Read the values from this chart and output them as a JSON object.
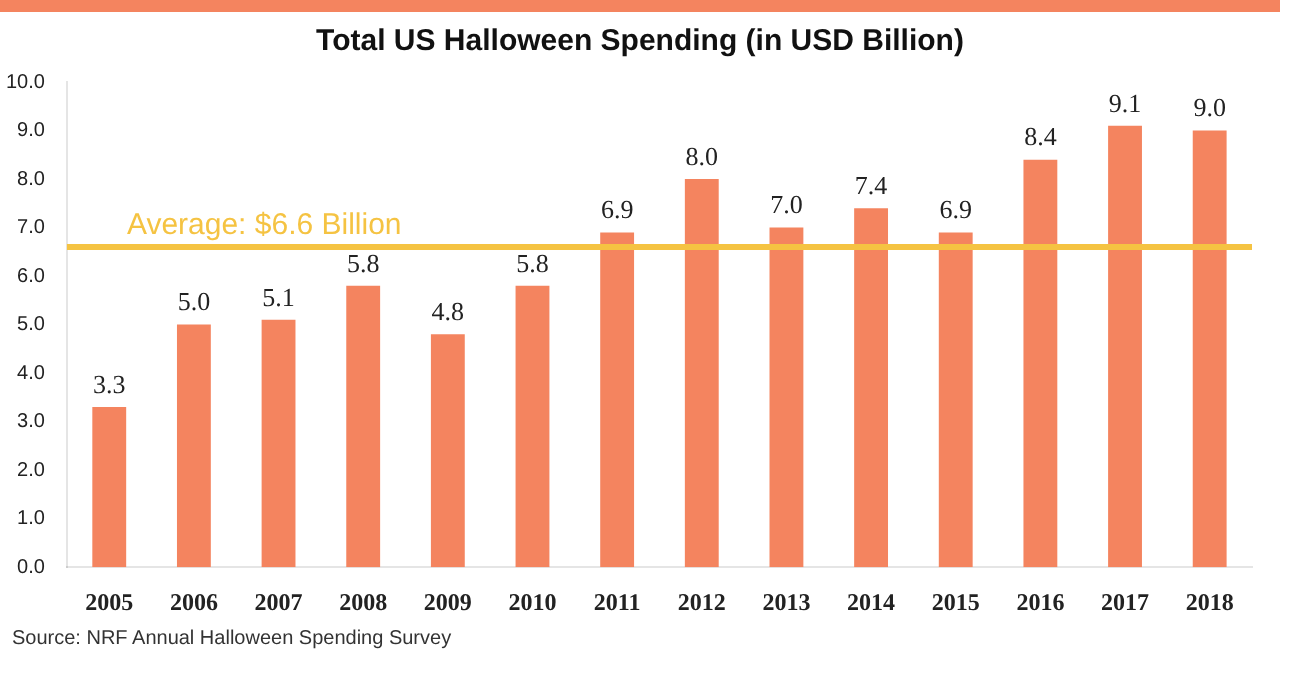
{
  "chart_data": {
    "type": "bar",
    "title": "Total US Halloween Spending (in USD Billion)",
    "categories": [
      "2005",
      "2006",
      "2007",
      "2008",
      "2009",
      "2010",
      "2011",
      "2012",
      "2013",
      "2014",
      "2015",
      "2016",
      "2017",
      "2018"
    ],
    "values": [
      3.3,
      5.0,
      5.1,
      5.8,
      4.8,
      5.8,
      6.9,
      8.0,
      7.0,
      7.4,
      6.9,
      8.4,
      9.1,
      9.0
    ],
    "value_labels": [
      "3.3",
      "5.0",
      "5.1",
      "5.8",
      "4.8",
      "5.8",
      "6.9",
      "8.0",
      "7.0",
      "7.4",
      "6.9",
      "8.4",
      "9.1",
      "9.0"
    ],
    "color": "#f4845f",
    "ylim": [
      0,
      10
    ],
    "yticks": [
      {
        "value": 0,
        "label": "0.0"
      },
      {
        "value": 1,
        "label": "1.0"
      },
      {
        "value": 2,
        "label": "2.0"
      },
      {
        "value": 3,
        "label": "3.0"
      },
      {
        "value": 4,
        "label": "4.0"
      },
      {
        "value": 5,
        "label": "5.0"
      },
      {
        "value": 6,
        "label": "6.0"
      },
      {
        "value": 7,
        "label": "7.0"
      },
      {
        "value": 8,
        "label": "8.0"
      },
      {
        "value": 9,
        "label": "9.0"
      },
      {
        "value": 10,
        "label": "10.0"
      }
    ],
    "ref_lines": [
      {
        "axis": "y",
        "value": 6.6,
        "label": "Average: $6.6 Billion",
        "color": "#f5c342"
      }
    ],
    "annotations": [
      "Source: NRF Annual Halloween Spending Survey"
    ],
    "grid": false,
    "legend": false
  }
}
